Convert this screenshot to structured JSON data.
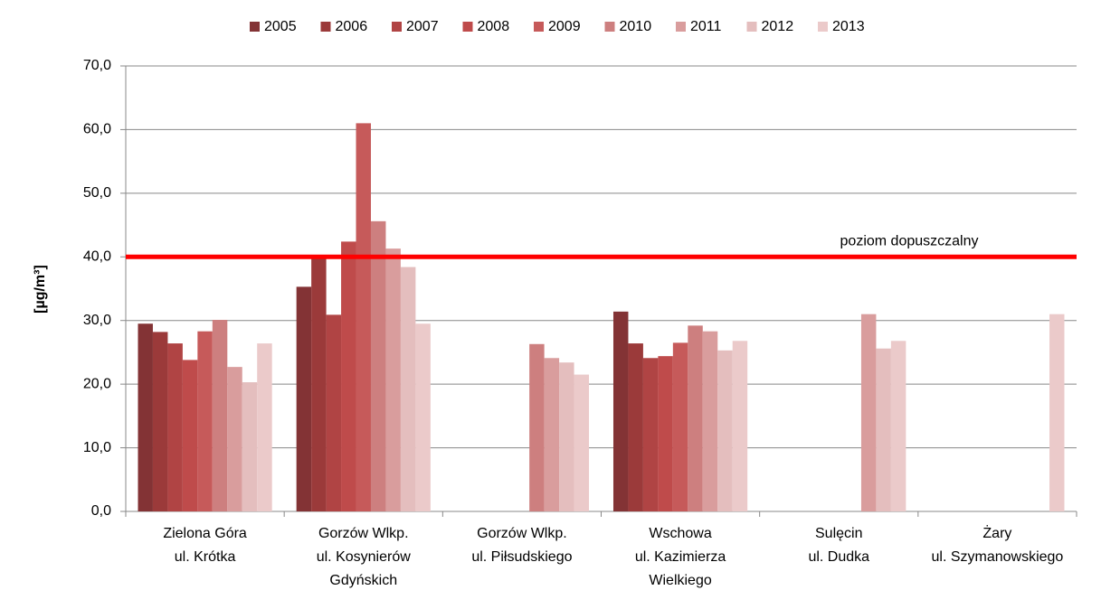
{
  "chart_data": {
    "type": "bar",
    "y_label": "[µg/m³]",
    "categories": [
      [
        "Zielona Góra",
        "ul. Krótka"
      ],
      [
        "Gorzów Wlkp.",
        "ul. Kosynierów",
        "Gdyńskich"
      ],
      [
        "Gorzów Wlkp.",
        "ul. Piłsudskiego"
      ],
      [
        "Wschowa",
        "ul. Kazimierza",
        "Wielkiego"
      ],
      [
        "Sulęcin",
        "ul. Dudka"
      ],
      [
        "Żary",
        "ul. Szymanowskiego"
      ]
    ],
    "series": [
      {
        "name": "2005",
        "color": "#833335",
        "values": [
          29.5,
          35.3,
          null,
          31.4,
          null,
          null
        ]
      },
      {
        "name": "2006",
        "color": "#9b3a3a",
        "values": [
          28.2,
          40.1,
          null,
          26.4,
          null,
          null
        ]
      },
      {
        "name": "2007",
        "color": "#b04444",
        "values": [
          26.4,
          30.9,
          null,
          24.1,
          null,
          null
        ]
      },
      {
        "name": "2008",
        "color": "#bf4b4b",
        "values": [
          23.8,
          42.4,
          null,
          24.4,
          null,
          null
        ]
      },
      {
        "name": "2009",
        "color": "#c65a5a",
        "values": [
          28.3,
          61.0,
          null,
          26.5,
          null,
          null
        ]
      },
      {
        "name": "2010",
        "color": "#cd7f7f",
        "values": [
          30.1,
          45.6,
          26.3,
          29.2,
          null,
          null
        ]
      },
      {
        "name": "2011",
        "color": "#d99d9d",
        "values": [
          22.7,
          41.3,
          24.1,
          28.3,
          31.0,
          null
        ]
      },
      {
        "name": "2012",
        "color": "#e4bebe",
        "values": [
          20.3,
          38.4,
          23.4,
          25.3,
          25.6,
          null
        ]
      },
      {
        "name": "2013",
        "color": "#ebcaca",
        "values": [
          26.4,
          29.5,
          21.5,
          26.8,
          26.8,
          31.0
        ]
      }
    ],
    "ylim": [
      0,
      70
    ],
    "yticks": [
      {
        "value": 0,
        "label": "0,0"
      },
      {
        "value": 10,
        "label": "10,0"
      },
      {
        "value": 20,
        "label": "20,0"
      },
      {
        "value": 30,
        "label": "30,0"
      },
      {
        "value": 40,
        "label": "40,0"
      },
      {
        "value": 50,
        "label": "50,0"
      },
      {
        "value": 60,
        "label": "60,0"
      },
      {
        "value": 70,
        "label": "70,0"
      }
    ],
    "grid": true,
    "reference_line": {
      "value": 40,
      "label": "poziom dopuszczalny",
      "color": "#ff0000"
    }
  }
}
